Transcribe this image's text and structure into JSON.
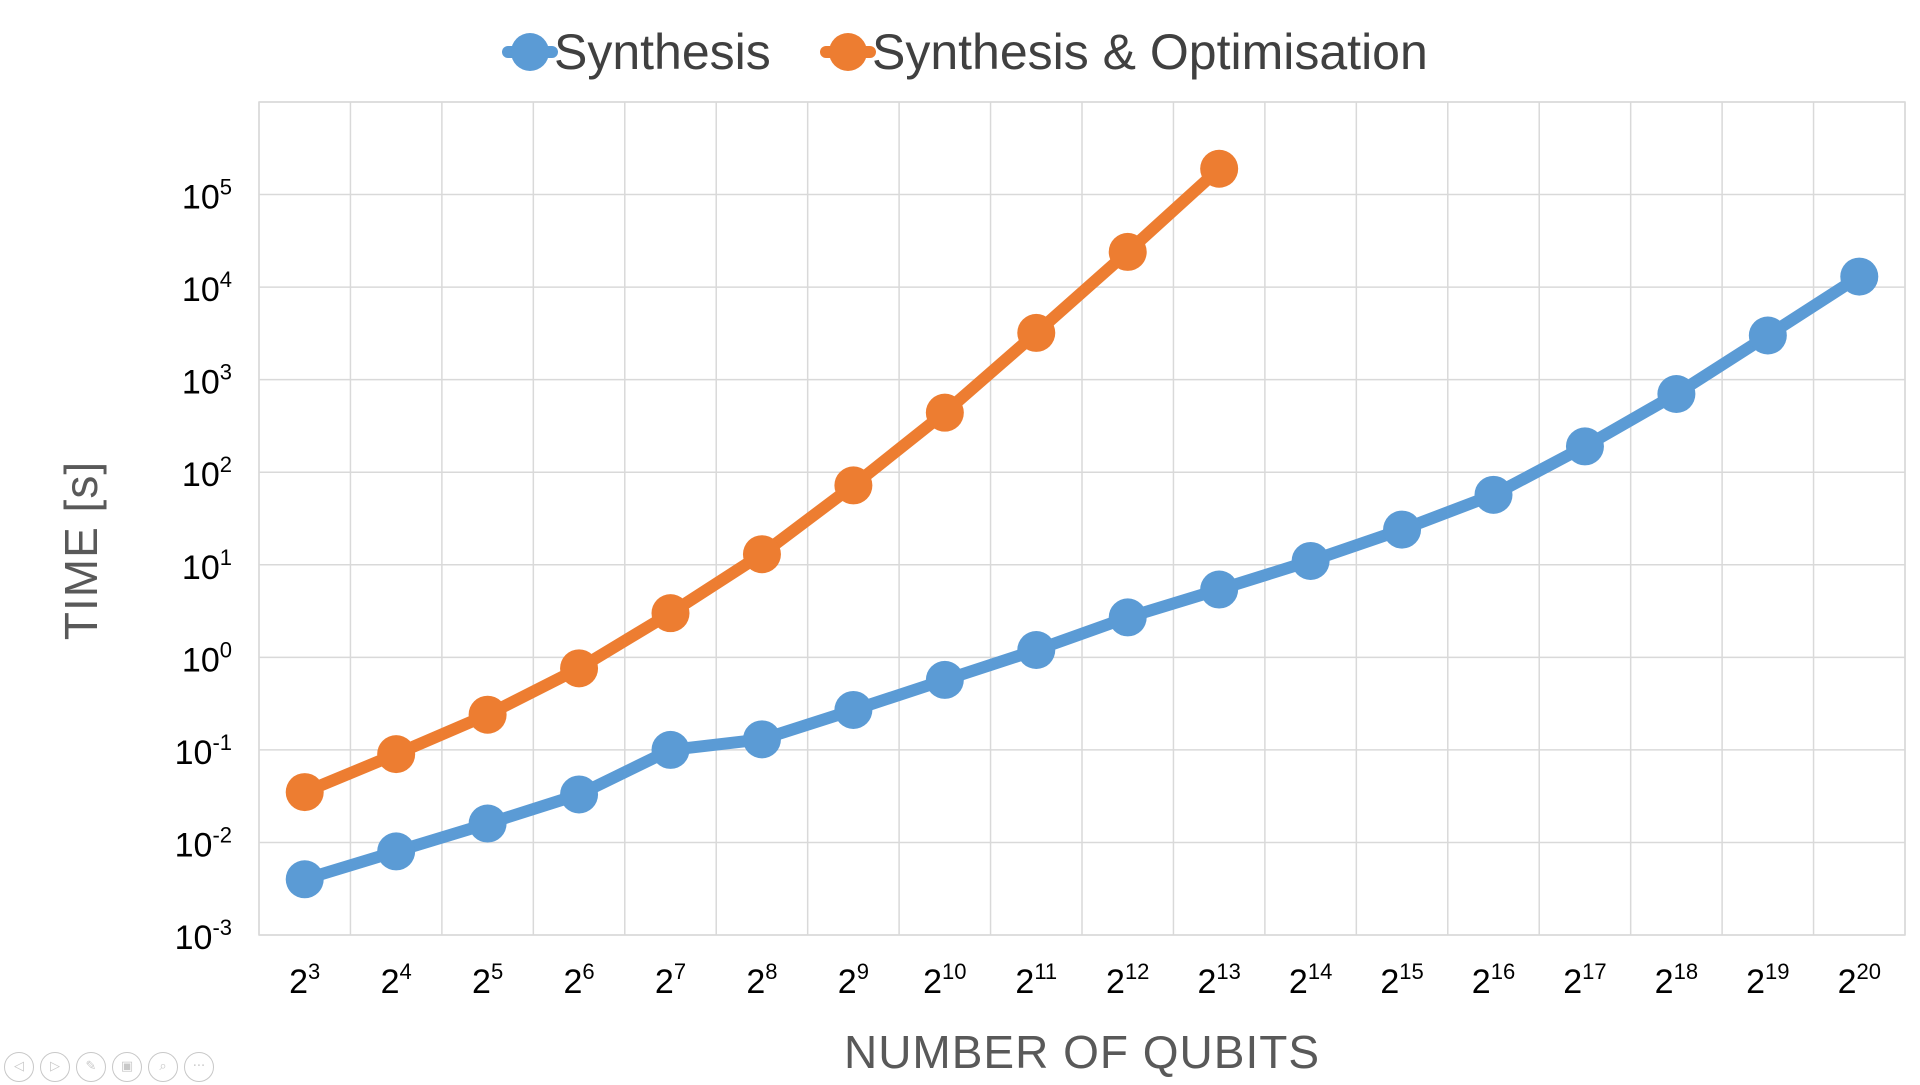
{
  "chart_data": {
    "type": "line",
    "title": "",
    "xlabel": "NUMBER OF QUBITS",
    "ylabel": "TIME [s]",
    "y_scale": "log",
    "ylim": [
      0.001,
      1000000
    ],
    "grid": true,
    "legend_position": "top-center",
    "categories": [
      "2^3",
      "2^4",
      "2^5",
      "2^6",
      "2^7",
      "2^8",
      "2^9",
      "2^10",
      "2^11",
      "2^12",
      "2^13",
      "2^14",
      "2^15",
      "2^16",
      "2^17",
      "2^18",
      "2^19",
      "2^20"
    ],
    "x_tick_labels": [
      {
        "base": "2",
        "exp": "3"
      },
      {
        "base": "2",
        "exp": "4"
      },
      {
        "base": "2",
        "exp": "5"
      },
      {
        "base": "2",
        "exp": "6"
      },
      {
        "base": "2",
        "exp": "7"
      },
      {
        "base": "2",
        "exp": "8"
      },
      {
        "base": "2",
        "exp": "9"
      },
      {
        "base": "2",
        "exp": "10"
      },
      {
        "base": "2",
        "exp": "11"
      },
      {
        "base": "2",
        "exp": "12"
      },
      {
        "base": "2",
        "exp": "13"
      },
      {
        "base": "2",
        "exp": "14"
      },
      {
        "base": "2",
        "exp": "15"
      },
      {
        "base": "2",
        "exp": "16"
      },
      {
        "base": "2",
        "exp": "17"
      },
      {
        "base": "2",
        "exp": "18"
      },
      {
        "base": "2",
        "exp": "19"
      },
      {
        "base": "2",
        "exp": "20"
      }
    ],
    "y_ticks": [
      {
        "value": 0.001,
        "base": "10",
        "exp": "-3"
      },
      {
        "value": 0.01,
        "base": "10",
        "exp": "-2"
      },
      {
        "value": 0.1,
        "base": "10",
        "exp": "-1"
      },
      {
        "value": 1,
        "base": "10",
        "exp": "0"
      },
      {
        "value": 10,
        "base": "10",
        "exp": "1"
      },
      {
        "value": 100,
        "base": "10",
        "exp": "2"
      },
      {
        "value": 1000,
        "base": "10",
        "exp": "3"
      },
      {
        "value": 10000,
        "base": "10",
        "exp": "4"
      },
      {
        "value": 100000,
        "base": "10",
        "exp": "5"
      }
    ],
    "series": [
      {
        "name": "Synthesis",
        "color": "#5b9bd5",
        "values": [
          0.004,
          0.008,
          0.016,
          0.033,
          0.1,
          0.13,
          0.27,
          0.57,
          1.2,
          2.7,
          5.4,
          11,
          24,
          57,
          190,
          700,
          3000,
          13000
        ]
      },
      {
        "name": "Synthesis & Optimisation",
        "color": "#ed7d31",
        "values": [
          0.035,
          0.09,
          0.24,
          0.76,
          3,
          13,
          72,
          440,
          3200,
          24000,
          190000,
          null,
          null,
          null,
          null,
          null,
          null,
          null
        ]
      }
    ]
  },
  "toolbar": {
    "icons": [
      "previous-icon",
      "next-icon",
      "pen-icon",
      "slides-icon",
      "zoom-icon",
      "more-icon"
    ],
    "glyphs": [
      "◁",
      "▷",
      "✎",
      "▣",
      "⌕",
      "···"
    ]
  }
}
